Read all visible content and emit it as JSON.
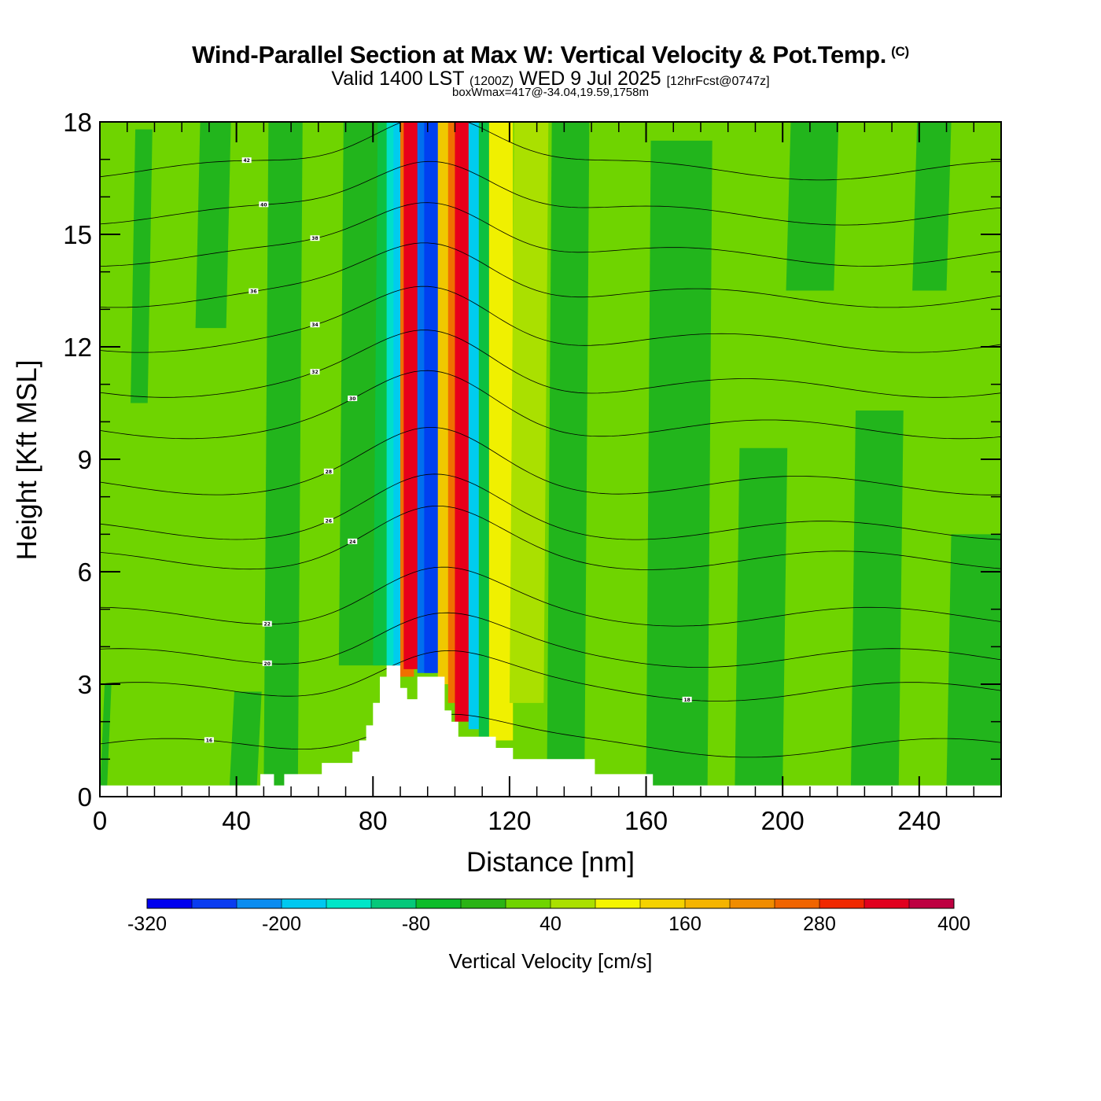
{
  "header": {
    "title": "Wind-Parallel Section at Max W: Vertical Velocity & Pot.Temp.",
    "copyright": "(C)",
    "valid_prefix": "Valid 1400 LST",
    "valid_z": "(1200Z)",
    "valid_date": "WED 9 Jul 2025",
    "forecast": "[12hrFcst@0747z]",
    "box_wmax": "boxWmax=417@-34.04,19.59,1758m"
  },
  "chart_data": {
    "type": "heatmap",
    "xlabel": "Distance [nm]",
    "ylabel": "Height [Kft MSL]",
    "xlim": [
      0,
      264
    ],
    "ylim": [
      0,
      18
    ],
    "x_ticks": [
      0,
      40,
      80,
      120,
      160,
      200,
      240
    ],
    "x_tick_labels": [
      "0",
      "40",
      "80",
      "120",
      "160",
      "200",
      "240"
    ],
    "y_ticks": [
      0,
      3,
      6,
      9,
      12,
      15,
      18
    ],
    "y_tick_labels": [
      "0",
      "3",
      "6",
      "9",
      "12",
      "15",
      "18"
    ],
    "background_level_color": "#6fd400",
    "vertical_velocity_bands": [
      {
        "x0": 0,
        "x1": 2,
        "ztop": 3,
        "color": "#22b51c"
      },
      {
        "x0": 9,
        "x1": 14,
        "ztop": 17.8,
        "zbot": 10.5,
        "color": "#22b51c"
      },
      {
        "x0": 28,
        "x1": 37,
        "ztop": 18,
        "zbot": 12.5,
        "color": "#22b51c"
      },
      {
        "x0": 38,
        "x1": 46,
        "ztop": 2.8,
        "zbot": 0.3,
        "color": "#22b51c"
      },
      {
        "x0": 48,
        "x1": 58,
        "ztop": 18,
        "zbot": 0.3,
        "color": "#22b51c"
      },
      {
        "x0": 70,
        "x1": 82,
        "ztop": 18,
        "zbot": 3.5,
        "color": "#22b51c"
      },
      {
        "x0": 80,
        "x1": 88,
        "ztop": 18,
        "zbot": 3.5,
        "color": "#0dc040"
      },
      {
        "x0": 84,
        "x1": 89,
        "ztop": 18,
        "zbot": 3.5,
        "color": "#00e0c8"
      },
      {
        "x0": 86,
        "x1": 90,
        "ztop": 18,
        "zbot": 3.2,
        "color": "#00ccee"
      },
      {
        "x0": 88,
        "x1": 92,
        "ztop": 18,
        "zbot": 3.2,
        "color": "#f07000"
      },
      {
        "x0": 89,
        "x1": 94,
        "ztop": 18,
        "zbot": 3.4,
        "color": "#e8001a"
      },
      {
        "x0": 93,
        "x1": 98,
        "ztop": 18,
        "zbot": 3.3,
        "color": "#0070ee"
      },
      {
        "x0": 95,
        "x1": 100,
        "ztop": 18,
        "zbot": 3.3,
        "color": "#0040f0"
      },
      {
        "x0": 99,
        "x1": 104,
        "ztop": 18,
        "zbot": 3.0,
        "color": "#f0c800"
      },
      {
        "x0": 102,
        "x1": 108,
        "ztop": 18,
        "zbot": 2.5,
        "color": "#f07000"
      },
      {
        "x0": 104,
        "x1": 110,
        "ztop": 18,
        "zbot": 2.0,
        "color": "#e8001a"
      },
      {
        "x0": 108,
        "x1": 115,
        "ztop": 18,
        "zbot": 1.8,
        "color": "#00ccee"
      },
      {
        "x0": 111,
        "x1": 118,
        "ztop": 18,
        "zbot": 1.6,
        "color": "#0dc040"
      },
      {
        "x0": 114,
        "x1": 121,
        "ztop": 18,
        "zbot": 1.5,
        "color": "#f0f000"
      },
      {
        "x0": 120,
        "x1": 130,
        "ztop": 18,
        "zbot": 2.5,
        "color": "#aae000"
      },
      {
        "x0": 131,
        "x1": 142,
        "ztop": 18,
        "zbot": 1.0,
        "color": "#22b51c"
      },
      {
        "x0": 160,
        "x1": 178,
        "ztop": 17.5,
        "zbot": 0.3,
        "color": "#22b51c"
      },
      {
        "x0": 186,
        "x1": 200,
        "ztop": 9.3,
        "zbot": 0.3,
        "color": "#22b51c"
      },
      {
        "x0": 201,
        "x1": 215,
        "ztop": 18,
        "zbot": 13.5,
        "color": "#22b51c"
      },
      {
        "x0": 220,
        "x1": 234,
        "ztop": 10.3,
        "zbot": 0.3,
        "color": "#22b51c"
      },
      {
        "x0": 238,
        "x1": 248,
        "ztop": 18,
        "zbot": 13.5,
        "color": "#22b51c"
      },
      {
        "x0": 248,
        "x1": 264,
        "ztop": 7.0,
        "zbot": 0.3,
        "color": "#22b51c"
      }
    ],
    "terrain": [
      [
        0,
        0.3
      ],
      [
        47,
        0.3
      ],
      [
        47,
        0.6
      ],
      [
        51,
        0.6
      ],
      [
        51,
        0.3
      ],
      [
        54,
        0.3
      ],
      [
        54,
        0.6
      ],
      [
        65,
        0.6
      ],
      [
        65,
        0.9
      ],
      [
        74,
        0.9
      ],
      [
        74,
        1.2
      ],
      [
        76,
        1.2
      ],
      [
        76,
        1.5
      ],
      [
        78,
        1.5
      ],
      [
        78,
        1.9
      ],
      [
        80,
        1.9
      ],
      [
        80,
        2.5
      ],
      [
        82,
        2.5
      ],
      [
        82,
        3.2
      ],
      [
        84,
        3.2
      ],
      [
        84,
        3.5
      ],
      [
        88,
        3.5
      ],
      [
        88,
        2.9
      ],
      [
        90,
        2.9
      ],
      [
        90,
        2.6
      ],
      [
        93,
        2.6
      ],
      [
        93,
        3.2
      ],
      [
        101,
        3.2
      ],
      [
        101,
        2.3
      ],
      [
        103,
        2.3
      ],
      [
        103,
        2.0
      ],
      [
        105,
        2.0
      ],
      [
        105,
        1.6
      ],
      [
        116,
        1.6
      ],
      [
        116,
        1.3
      ],
      [
        121,
        1.3
      ],
      [
        121,
        1.0
      ],
      [
        145,
        1.0
      ],
      [
        145,
        0.6
      ],
      [
        162,
        0.6
      ],
      [
        162,
        0.3
      ],
      [
        264,
        0.3
      ]
    ],
    "isentropes": [
      {
        "z0": 1.3,
        "label": "16",
        "lx": 32
      },
      {
        "z0": 2.8,
        "label": "18",
        "lx": 172
      },
      {
        "z0": 3.7,
        "label": "20",
        "lx": 49
      },
      {
        "z0": 4.8,
        "label": "22",
        "lx": 49
      },
      {
        "z0": 6.3,
        "label": "24",
        "lx": 74
      },
      {
        "z0": 7.1,
        "label": "26",
        "lx": 67
      },
      {
        "z0": 8.3,
        "label": "28",
        "lx": 67
      },
      {
        "z0": 9.8,
        "label": "30",
        "lx": 74
      },
      {
        "z0": 10.9,
        "label": "32",
        "lx": 63
      },
      {
        "z0": 12.1,
        "label": "34",
        "lx": 63
      },
      {
        "z0": 13.3,
        "label": "36",
        "lx": 45
      },
      {
        "z0": 14.4,
        "label": "38",
        "lx": 63
      },
      {
        "z0": 15.5,
        "label": "40",
        "lx": 48
      },
      {
        "z0": 16.7,
        "label": "42",
        "lx": 43
      }
    ],
    "colorbar": {
      "title": "Vertical Velocity [cm/s]",
      "colors": [
        "#0000ee",
        "#0a3cf0",
        "#0a8cf0",
        "#00c8f0",
        "#00e6c8",
        "#05c87a",
        "#0dbc2a",
        "#2ab314",
        "#6fd400",
        "#aae000",
        "#f5f500",
        "#f5d200",
        "#f5b400",
        "#f08c00",
        "#f06400",
        "#f02800",
        "#e1001e",
        "#be0041"
      ],
      "tick_labels": [
        "-320",
        "-200",
        "-80",
        "40",
        "160",
        "280",
        "400"
      ]
    }
  }
}
